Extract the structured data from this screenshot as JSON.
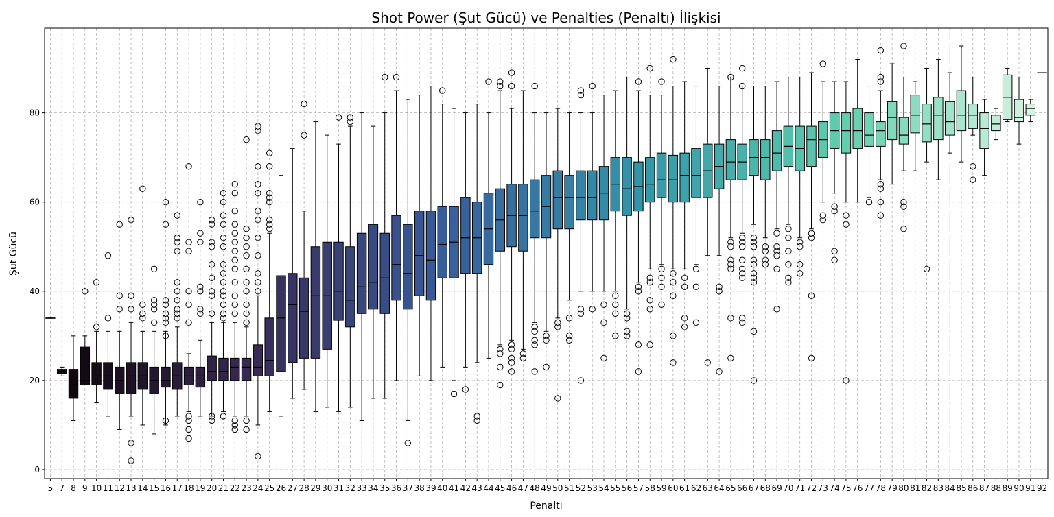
{
  "chart_data": {
    "type": "box",
    "title": "Shot Power (Şut Gücü) ve Penalties (Penaltı) İlişkisi",
    "xlabel": "Penaltı",
    "ylabel": "Şut Gücü",
    "ylim": [
      -2,
      99
    ],
    "yticks": [
      0,
      20,
      40,
      60,
      80
    ],
    "grid": true,
    "grid_style": "dashed",
    "palette": "mako (dark to light)",
    "boxes": [
      {
        "x": "5",
        "q1": 34,
        "median": 34,
        "q3": 34,
        "low": 34,
        "high": 34,
        "outliers": []
      },
      {
        "x": "7",
        "q1": 21.5,
        "median": 22,
        "q3": 22.5,
        "low": 21,
        "high": 23,
        "outliers": []
      },
      {
        "x": "8",
        "q1": 16,
        "median": 19,
        "q3": 22.5,
        "low": 11,
        "high": 30,
        "outliers": []
      },
      {
        "x": "9",
        "q1": 19,
        "median": 20,
        "q3": 27.5,
        "low": 19,
        "high": 30,
        "outliers": [
          40
        ]
      },
      {
        "x": "10",
        "q1": 19,
        "median": 21,
        "q3": 24,
        "low": 15,
        "high": 31,
        "outliers": [
          32,
          42
        ]
      },
      {
        "x": "11",
        "q1": 18,
        "median": 21,
        "q3": 24,
        "low": 12,
        "high": 31,
        "outliers": [
          34,
          48
        ]
      },
      {
        "x": "12",
        "q1": 17,
        "median": 20,
        "q3": 23,
        "low": 9,
        "high": 31,
        "outliers": [
          36,
          39,
          55
        ]
      },
      {
        "x": "13",
        "q1": 17,
        "median": 21,
        "q3": 24,
        "low": 12,
        "high": 33,
        "outliers": [
          2,
          6,
          36,
          39,
          56
        ]
      },
      {
        "x": "14",
        "q1": 18,
        "median": 21,
        "q3": 24,
        "low": 10,
        "high": 31,
        "outliers": [
          34,
          35,
          37,
          63
        ]
      },
      {
        "x": "15",
        "q1": 17,
        "median": 20,
        "q3": 23,
        "low": 8,
        "high": 31,
        "outliers": [
          33,
          36,
          37,
          38,
          45
        ]
      },
      {
        "x": "16",
        "q1": 18.5,
        "median": 20,
        "q3": 23,
        "low": 10,
        "high": 31,
        "outliers": [
          11,
          30,
          33,
          34,
          35,
          37,
          38,
          55,
          60
        ]
      },
      {
        "x": "17",
        "q1": 18,
        "median": 21,
        "q3": 24,
        "low": 12,
        "high": 32,
        "outliers": [
          34,
          35,
          36,
          38,
          40,
          42,
          49,
          51,
          52,
          57
        ]
      },
      {
        "x": "18",
        "q1": 19,
        "median": 21,
        "q3": 23,
        "low": 13,
        "high": 26,
        "outliers": [
          7,
          9,
          11,
          12,
          33,
          37,
          40,
          49,
          51,
          68
        ]
      },
      {
        "x": "19",
        "q1": 18.5,
        "median": 21,
        "q3": 23,
        "low": 12,
        "high": 29,
        "outliers": [
          35,
          36,
          40,
          41,
          51,
          53,
          60
        ]
      },
      {
        "x": "20",
        "q1": 20,
        "median": 22,
        "q3": 25.5,
        "low": 12,
        "high": 33,
        "outliers": [
          11,
          12,
          35,
          39,
          40,
          43,
          46,
          50,
          51,
          55,
          56
        ]
      },
      {
        "x": "21",
        "q1": 20,
        "median": 22,
        "q3": 25,
        "low": 13,
        "high": 33,
        "outliers": [
          12,
          34,
          35,
          37,
          39,
          40,
          42,
          44,
          46,
          50,
          52,
          55,
          57,
          60,
          62
        ]
      },
      {
        "x": "22",
        "q1": 20,
        "median": 23,
        "q3": 25,
        "low": 12,
        "high": 33,
        "outliers": [
          9,
          10,
          11,
          35,
          37,
          39,
          42,
          45,
          47,
          49,
          51,
          53,
          55,
          58,
          62,
          64
        ]
      },
      {
        "x": "23",
        "q1": 20,
        "median": 23,
        "q3": 25,
        "low": 12,
        "high": 32,
        "outliers": [
          9,
          11,
          33,
          35,
          37,
          40,
          42,
          45,
          48,
          50,
          52,
          54,
          74
        ]
      },
      {
        "x": "24",
        "q1": 21,
        "median": 23,
        "q3": 28,
        "low": 10,
        "high": 39,
        "outliers": [
          3,
          40,
          42,
          44,
          48,
          52,
          56,
          58,
          62,
          64,
          68,
          76,
          77
        ]
      },
      {
        "x": "25",
        "q1": 21,
        "median": 24.5,
        "q3": 34,
        "low": 13,
        "high": 53,
        "outliers": [
          54,
          55,
          56,
          60,
          61,
          62,
          68,
          71
        ]
      },
      {
        "x": "26",
        "q1": 22,
        "median": 34,
        "q3": 43.5,
        "low": 12,
        "high": 66,
        "outliers": []
      },
      {
        "x": "27",
        "q1": 24,
        "median": 37,
        "q3": 44,
        "low": 16,
        "high": 72,
        "outliers": []
      },
      {
        "x": "28",
        "q1": 25,
        "median": 35.5,
        "q3": 43,
        "low": 18,
        "high": 58,
        "outliers": [
          75,
          82
        ]
      },
      {
        "x": "29",
        "q1": 25,
        "median": 39,
        "q3": 50,
        "low": 13,
        "high": 78,
        "outliers": []
      },
      {
        "x": "30",
        "q1": 27,
        "median": 39,
        "q3": 51,
        "low": 14,
        "high": 75,
        "outliers": []
      },
      {
        "x": "31",
        "q1": 33.5,
        "median": 40,
        "q3": 51,
        "low": 13,
        "high": 73,
        "outliers": [
          79
        ]
      },
      {
        "x": "32",
        "q1": 32,
        "median": 38,
        "q3": 50,
        "low": 14,
        "high": 77,
        "outliers": [
          78,
          79
        ]
      },
      {
        "x": "33",
        "q1": 35,
        "median": 41,
        "q3": 53,
        "low": 11,
        "high": 80,
        "outliers": []
      },
      {
        "x": "34",
        "q1": 36,
        "median": 42,
        "q3": 55,
        "low": 16,
        "high": 77,
        "outliers": []
      },
      {
        "x": "35",
        "q1": 35,
        "median": 43,
        "q3": 53,
        "low": 16,
        "high": 80,
        "outliers": [
          88
        ]
      },
      {
        "x": "36",
        "q1": 38,
        "median": 46,
        "q3": 57,
        "low": 20,
        "high": 85,
        "outliers": [
          88
        ]
      },
      {
        "x": "37",
        "q1": 36,
        "median": 44,
        "q3": 55,
        "low": 11,
        "high": 83,
        "outliers": [
          6
        ]
      },
      {
        "x": "38",
        "q1": 39,
        "median": 48,
        "q3": 58,
        "low": 21,
        "high": 84,
        "outliers": []
      },
      {
        "x": "39",
        "q1": 38,
        "median": 47,
        "q3": 58,
        "low": 20,
        "high": 86,
        "outliers": []
      },
      {
        "x": "40",
        "q1": 43,
        "median": 50.5,
        "q3": 59,
        "low": 23,
        "high": 82,
        "outliers": [
          85
        ]
      },
      {
        "x": "41",
        "q1": 43,
        "median": 51,
        "q3": 59,
        "low": 20,
        "high": 81,
        "outliers": [
          17
        ]
      },
      {
        "x": "42",
        "q1": 44,
        "median": 52,
        "q3": 61,
        "low": 23,
        "high": 80,
        "outliers": [
          18
        ]
      },
      {
        "x": "43",
        "q1": 44,
        "median": 52,
        "q3": 60,
        "low": 24,
        "high": 82,
        "outliers": [
          11,
          12
        ]
      },
      {
        "x": "44",
        "q1": 46,
        "median": 54,
        "q3": 62,
        "low": 25,
        "high": 80,
        "outliers": [
          87
        ]
      },
      {
        "x": "45",
        "q1": 49,
        "median": 56,
        "q3": 63,
        "low": 28,
        "high": 85,
        "outliers": [
          19,
          23,
          26,
          27,
          86,
          87
        ]
      },
      {
        "x": "46",
        "q1": 50,
        "median": 57,
        "q3": 64,
        "low": 29,
        "high": 81,
        "outliers": [
          22,
          24,
          25,
          27,
          28,
          86,
          89
        ]
      },
      {
        "x": "47",
        "q1": 49,
        "median": 57,
        "q3": 64,
        "low": 27,
        "high": 85,
        "outliers": [
          25,
          26
        ]
      },
      {
        "x": "48",
        "q1": 52,
        "median": 58,
        "q3": 65,
        "low": 33,
        "high": 80,
        "outliers": [
          22,
          28,
          29,
          31,
          32,
          86
        ]
      },
      {
        "x": "49",
        "q1": 52,
        "median": 59,
        "q3": 66,
        "low": 31,
        "high": 80,
        "outliers": [
          23,
          29,
          30
        ]
      },
      {
        "x": "50",
        "q1": 54,
        "median": 61,
        "q3": 67,
        "low": 34,
        "high": 81,
        "outliers": [
          16,
          32,
          33
        ]
      },
      {
        "x": "51",
        "q1": 54,
        "median": 61,
        "q3": 66,
        "low": 38,
        "high": 80,
        "outliers": [
          29,
          30,
          34
        ]
      },
      {
        "x": "52",
        "q1": 56,
        "median": 61,
        "q3": 67,
        "low": 40,
        "high": 80,
        "outliers": [
          20,
          35,
          36,
          84,
          85
        ]
      },
      {
        "x": "53",
        "q1": 56,
        "median": 61,
        "q3": 67,
        "low": 40,
        "high": 80,
        "outliers": [
          36,
          86
        ]
      },
      {
        "x": "54",
        "q1": 56,
        "median": 62,
        "q3": 68,
        "low": 40,
        "high": 84,
        "outliers": [
          25,
          33,
          37
        ]
      },
      {
        "x": "55",
        "q1": 58,
        "median": 64,
        "q3": 70,
        "low": 40,
        "high": 85,
        "outliers": [
          30,
          35,
          37,
          39
        ]
      },
      {
        "x": "56",
        "q1": 57,
        "median": 63,
        "q3": 70,
        "low": 36,
        "high": 88,
        "outliers": [
          30,
          31,
          34,
          35
        ]
      },
      {
        "x": "57",
        "q1": 58,
        "median": 63.5,
        "q3": 69,
        "low": 42,
        "high": 85,
        "outliers": [
          22,
          28,
          40,
          41,
          87
        ]
      },
      {
        "x": "58",
        "q1": 60,
        "median": 64,
        "q3": 70,
        "low": 45,
        "high": 84,
        "outliers": [
          28,
          36,
          38,
          42,
          43,
          90
        ]
      },
      {
        "x": "59",
        "q1": 61,
        "median": 65,
        "q3": 71,
        "low": 46,
        "high": 84,
        "outliers": [
          37,
          41,
          43,
          45,
          87
        ]
      },
      {
        "x": "60",
        "q1": 60,
        "median": 65,
        "q3": 70.5,
        "low": 45,
        "high": 86,
        "outliers": [
          24,
          30,
          39,
          42,
          44,
          92
        ]
      },
      {
        "x": "61",
        "q1": 60,
        "median": 66,
        "q3": 71,
        "low": 45,
        "high": 87,
        "outliers": [
          32,
          34,
          41,
          43
        ]
      },
      {
        "x": "62",
        "q1": 61,
        "median": 66,
        "q3": 72,
        "low": 46,
        "high": 86,
        "outliers": [
          33,
          41,
          45
        ]
      },
      {
        "x": "63",
        "q1": 61,
        "median": 67,
        "q3": 73,
        "low": 48,
        "high": 90,
        "outliers": [
          24
        ]
      },
      {
        "x": "64",
        "q1": 63,
        "median": 68,
        "q3": 73,
        "low": 48,
        "high": 86,
        "outliers": [
          22,
          40,
          41
        ]
      },
      {
        "x": "65",
        "q1": 65,
        "median": 69,
        "q3": 74,
        "low": 52,
        "high": 88,
        "outliers": [
          25,
          34,
          45,
          46,
          47,
          50,
          51,
          88
        ]
      },
      {
        "x": "66",
        "q1": 65,
        "median": 69,
        "q3": 73,
        "low": 53,
        "high": 86,
        "outliers": [
          33,
          34,
          43,
          44,
          45,
          47,
          50,
          51,
          52,
          86,
          90
        ]
      },
      {
        "x": "67",
        "q1": 66,
        "median": 70,
        "q3": 74,
        "low": 55,
        "high": 86,
        "outliers": [
          20,
          31,
          42,
          43,
          44,
          46,
          47,
          50,
          51,
          52
        ]
      },
      {
        "x": "68",
        "q1": 65,
        "median": 70,
        "q3": 74,
        "low": 52,
        "high": 86,
        "outliers": [
          46,
          47,
          49,
          50
        ]
      },
      {
        "x": "69",
        "q1": 67,
        "median": 71,
        "q3": 76,
        "low": 54,
        "high": 87,
        "outliers": [
          36,
          45,
          48,
          49,
          50,
          53
        ]
      },
      {
        "x": "70",
        "q1": 68,
        "median": 72.5,
        "q3": 77,
        "low": 55,
        "high": 88,
        "outliers": [
          42,
          43,
          46,
          49,
          52,
          54
        ]
      },
      {
        "x": "71",
        "q1": 67,
        "median": 72,
        "q3": 77,
        "low": 52,
        "high": 88,
        "outliers": [
          44,
          46,
          50,
          51
        ]
      },
      {
        "x": "72",
        "q1": 68,
        "median": 74,
        "q3": 77,
        "low": 54,
        "high": 89,
        "outliers": [
          25,
          39,
          52,
          53
        ]
      },
      {
        "x": "73",
        "q1": 70,
        "median": 74,
        "q3": 78,
        "low": 60,
        "high": 87,
        "outliers": [
          56,
          57,
          91
        ]
      },
      {
        "x": "74",
        "q1": 72,
        "median": 76,
        "q3": 80,
        "low": 62,
        "high": 87,
        "outliers": [
          47,
          49,
          58,
          59
        ]
      },
      {
        "x": "75",
        "q1": 71,
        "median": 76,
        "q3": 80,
        "low": 60,
        "high": 87,
        "outliers": [
          20,
          55,
          57
        ]
      },
      {
        "x": "76",
        "q1": 72,
        "median": 76,
        "q3": 81,
        "low": 60,
        "high": 92,
        "outliers": []
      },
      {
        "x": "77",
        "q1": 72.5,
        "median": 75,
        "q3": 80,
        "low": 61,
        "high": 86,
        "outliers": [
          60
        ]
      },
      {
        "x": "78",
        "q1": 72.5,
        "median": 76,
        "q3": 78,
        "low": 65,
        "high": 85,
        "outliers": [
          57,
          60,
          63,
          64,
          87,
          88,
          94
        ]
      },
      {
        "x": "79",
        "q1": 74,
        "median": 79,
        "q3": 82.5,
        "low": 64,
        "high": 91,
        "outliers": []
      },
      {
        "x": "80",
        "q1": 73,
        "median": 75,
        "q3": 79,
        "low": 67,
        "high": 88,
        "outliers": [
          54,
          59,
          60,
          95
        ]
      },
      {
        "x": "81",
        "q1": 75.5,
        "median": 79.5,
        "q3": 84,
        "low": 67,
        "high": 87,
        "outliers": []
      },
      {
        "x": "82",
        "q1": 73.5,
        "median": 77.5,
        "q3": 82,
        "low": 69,
        "high": 90,
        "outliers": [
          45
        ]
      },
      {
        "x": "83",
        "q1": 74,
        "median": 79.5,
        "q3": 83.5,
        "low": 65,
        "high": 92,
        "outliers": []
      },
      {
        "x": "84",
        "q1": 75,
        "median": 78,
        "q3": 82.5,
        "low": 71,
        "high": 89,
        "outliers": []
      },
      {
        "x": "85",
        "q1": 76,
        "median": 79.5,
        "q3": 85,
        "low": 69,
        "high": 95,
        "outliers": []
      },
      {
        "x": "86",
        "q1": 76.5,
        "median": 79.5,
        "q3": 82,
        "low": 75,
        "high": 88,
        "outliers": [
          65,
          68
        ]
      },
      {
        "x": "87",
        "q1": 72,
        "median": 76.5,
        "q3": 80,
        "low": 66,
        "high": 83,
        "outliers": []
      },
      {
        "x": "88",
        "q1": 76,
        "median": 77.5,
        "q3": 79.5,
        "low": 74,
        "high": 81,
        "outliers": []
      },
      {
        "x": "89",
        "q1": 78.5,
        "median": 83.5,
        "q3": 88.5,
        "low": 78,
        "high": 90,
        "outliers": []
      },
      {
        "x": "90",
        "q1": 78,
        "median": 79,
        "q3": 83,
        "low": 73,
        "high": 88,
        "outliers": []
      },
      {
        "x": "91",
        "q1": 79.5,
        "median": 81,
        "q3": 82,
        "low": 78,
        "high": 83,
        "outliers": []
      },
      {
        "x": "92",
        "q1": 89,
        "median": 89,
        "q3": 89,
        "low": 89,
        "high": 89,
        "outliers": []
      }
    ]
  },
  "colors": {
    "palette_stops": [
      "#0b0405",
      "#382a54",
      "#395d9c",
      "#3497a9",
      "#60ceac",
      "#def5e5"
    ],
    "grid": "#b0b0b0",
    "line": "#000000"
  }
}
